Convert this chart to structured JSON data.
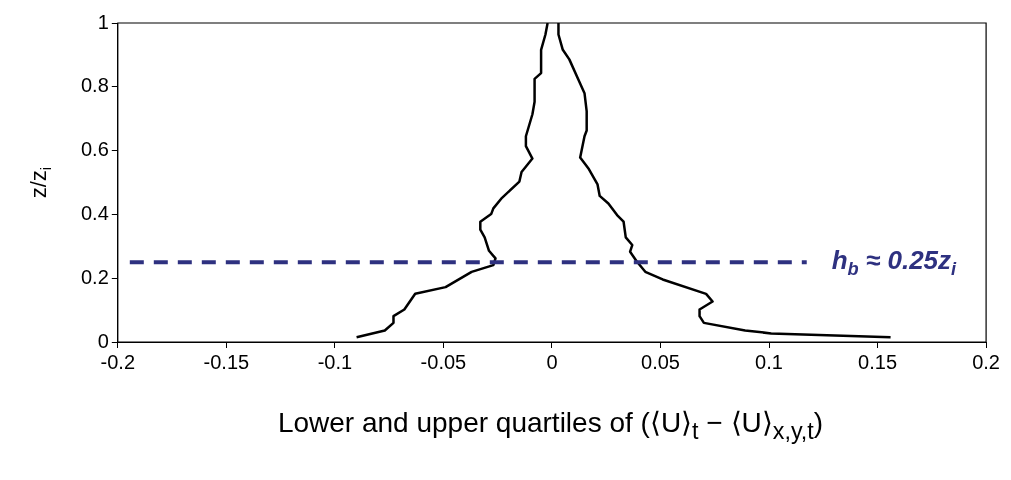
{
  "chart_data": {
    "type": "line",
    "xlabel": "Lower and upper quartiles of (⟨U⟩$_{t}$ − ⟨U⟩$_{x,y,t}$)",
    "ylabel": "z/z$_{i}$",
    "xlim": [
      -0.2,
      0.2
    ],
    "xticks": [
      -0.2,
      -0.15,
      -0.1,
      -0.05,
      0,
      0.05,
      0.1,
      0.15,
      0.2
    ],
    "ylim": [
      0,
      1
    ],
    "yticks": [
      0,
      0.2,
      0.4,
      0.6,
      0.8,
      1
    ],
    "grid": false,
    "legend": false,
    "marker": "none",
    "line_style": "solid",
    "series": [
      {
        "color": "#000000",
        "x": [
          -0.09,
          -0.077,
          -0.073,
          -0.073,
          -0.068,
          -0.063,
          -0.049,
          -0.037,
          -0.027,
          -0.026,
          -0.029,
          -0.031,
          -0.033,
          -0.033,
          -0.028,
          -0.027,
          -0.023,
          -0.015,
          -0.014,
          -0.009,
          -0.012,
          -0.012,
          -0.009,
          -0.008,
          -0.008,
          -0.005,
          -0.005,
          -0.003,
          -0.002
        ],
        "values": [
          0.015,
          0.036,
          0.06,
          0.081,
          0.102,
          0.151,
          0.172,
          0.22,
          0.241,
          0.262,
          0.286,
          0.328,
          0.352,
          0.377,
          0.401,
          0.419,
          0.452,
          0.503,
          0.533,
          0.575,
          0.614,
          0.645,
          0.714,
          0.753,
          0.825,
          0.843,
          0.916,
          0.964,
          1.0
        ]
      },
      {
        "color": "#000000",
        "x": [
          0.003,
          0.003,
          0.005,
          0.008,
          0.012,
          0.015,
          0.016,
          0.016,
          0.015,
          0.013,
          0.017,
          0.021,
          0.022,
          0.026,
          0.03,
          0.033,
          0.034,
          0.037,
          0.036,
          0.039,
          0.043,
          0.051,
          0.071,
          0.074,
          0.068,
          0.068,
          0.07,
          0.089,
          0.101,
          0.156
        ],
        "values": [
          1.0,
          0.964,
          0.916,
          0.886,
          0.825,
          0.78,
          0.723,
          0.663,
          0.645,
          0.578,
          0.542,
          0.494,
          0.458,
          0.434,
          0.398,
          0.377,
          0.328,
          0.304,
          0.283,
          0.253,
          0.22,
          0.196,
          0.151,
          0.127,
          0.102,
          0.081,
          0.06,
          0.036,
          0.027,
          0.015
        ]
      }
    ],
    "ref_lines": [
      {
        "axis": "y",
        "value": 0.25,
        "label": "h$_{b}$ ≈ 0.25z$_{i}$",
        "color": "#2e3180",
        "line_style": "dashed"
      }
    ]
  }
}
